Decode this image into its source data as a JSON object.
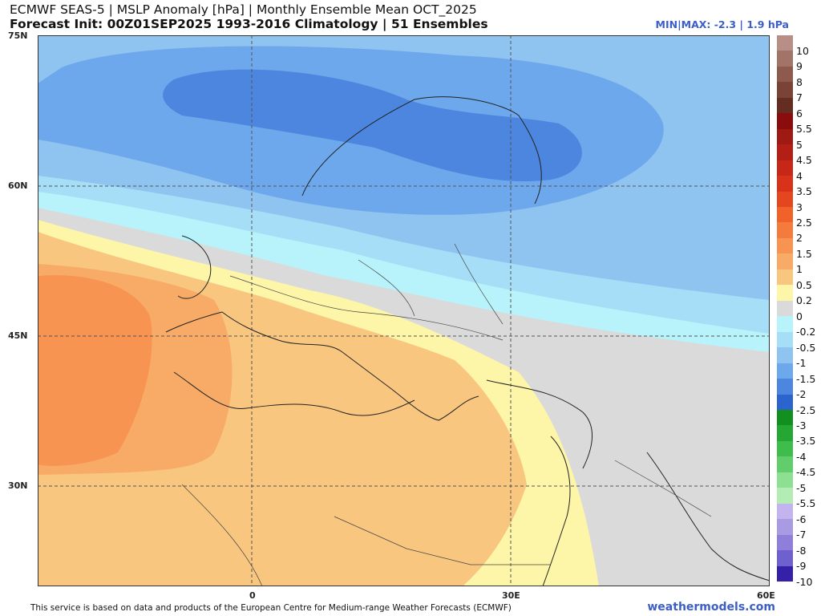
{
  "header": {
    "title_line1": "ECMWF SEAS-5 | MSLP Anomaly [hPa] | Monthly Ensemble Mean OCT_2025",
    "title_line2": "Forecast Init: 00Z01SEP2025    1993-2016 Climatology | 51 Ensembles",
    "minmax": "MIN|MAX: -2.3 | 1.9 hPa"
  },
  "map": {
    "projection": "equirectangular",
    "lon_range": [
      -12,
      29
    ],
    "lat_range": [
      20,
      75
    ],
    "lat_labels": [
      "75N",
      "60N",
      "45N",
      "30N"
    ],
    "lat_values": [
      75,
      60,
      45,
      30
    ],
    "lon_labels": [
      "0",
      "30E",
      "60E"
    ],
    "lon_values": [
      0,
      30,
      60
    ],
    "gridlines": true
  },
  "colorbar": {
    "labels": [
      "10",
      "9",
      "8",
      "7",
      "6",
      "5.5",
      "5",
      "4.5",
      "4",
      "3.5",
      "3",
      "2.5",
      "2",
      "1.5",
      "1",
      "0.5",
      "0.2",
      "0",
      "-0.2",
      "-0.5",
      "-1",
      "-1.5",
      "-2",
      "-2.5",
      "-3",
      "-3.5",
      "-4",
      "-4.5",
      "-5",
      "-5.5",
      "-6",
      "-7",
      "-8",
      "-9",
      "-10"
    ],
    "colors": [
      "#b78f86",
      "#a27367",
      "#8e5a4d",
      "#7a4336",
      "#652d22",
      "#8a0c0c",
      "#9e1a12",
      "#b31f14",
      "#c62716",
      "#d8331a",
      "#e4471f",
      "#f0622a",
      "#f47b3c",
      "#f79452",
      "#f8ab66",
      "#f9c680",
      "#fdf5a8",
      "#dadada",
      "#b8f2fa",
      "#a6def7",
      "#8fc3f0",
      "#6ea8ec",
      "#4d86de",
      "#2b64cc",
      "#138f20",
      "#25a833",
      "#3fbd4c",
      "#61cd6b",
      "#8ddf92",
      "#b3ecb4",
      "#c3b4ef",
      "#a99ae4",
      "#8f7fdb",
      "#6e60cf",
      "#3520a8"
    ]
  },
  "footer": {
    "note": "This service is based on data and products of the European Centre for Medium-range Weather Forecasts (ECMWF)",
    "brand": "weathermodels.com"
  }
}
